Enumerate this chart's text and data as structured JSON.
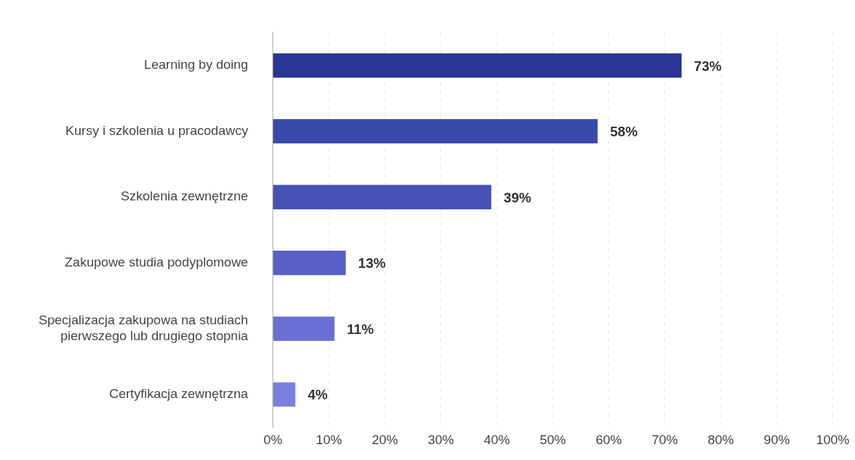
{
  "chart_data": {
    "type": "bar",
    "orientation": "horizontal",
    "categories": [
      "Learning by doing",
      "Kursy i szkolenia u pracodawcy",
      "Szkolenia zewnętrzne",
      "Zakupowe studia podyplomowe",
      "Specjalizacja zakupowa na studiach\npierwszego lub drugiego stopnia",
      "Certyfikacja zewnętrzna"
    ],
    "values": [
      73,
      58,
      39,
      13,
      11,
      4
    ],
    "colors": [
      "#283593",
      "#3949a8",
      "#4752b5",
      "#5a5fc5",
      "#6a6fd4",
      "#7b7fe0"
    ],
    "value_labels": [
      "73%",
      "58%",
      "39%",
      "13%",
      "11%",
      "4%"
    ],
    "xlim": [
      0,
      100
    ],
    "xticks": [
      {
        "value": 0,
        "label": "0%"
      },
      {
        "value": 10,
        "label": "10%"
      },
      {
        "value": 20,
        "label": "20%"
      },
      {
        "value": 30,
        "label": "30%"
      },
      {
        "value": 40,
        "label": "40%"
      },
      {
        "value": 50,
        "label": "50%"
      },
      {
        "value": 60,
        "label": "60%"
      },
      {
        "value": 70,
        "label": "70%"
      },
      {
        "value": 80,
        "label": "80%"
      },
      {
        "value": 90,
        "label": "90%"
      },
      {
        "value": 100,
        "label": "100%"
      }
    ],
    "grid": "x",
    "legend": false
  }
}
